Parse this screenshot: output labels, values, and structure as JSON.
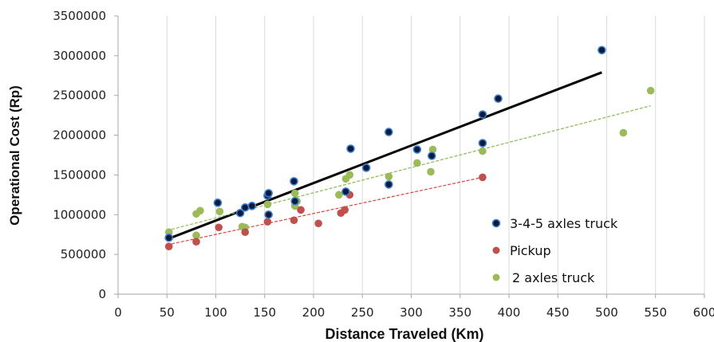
{
  "chart_data": {
    "type": "scatter",
    "title": "",
    "xlabel": "Distance Traveled (Km)",
    "ylabel": "Operational Cost  (Rp)",
    "xlim": [
      0,
      600
    ],
    "ylim": [
      0,
      3500000
    ],
    "xticks": [
      0,
      50,
      100,
      150,
      200,
      250,
      300,
      350,
      400,
      450,
      500,
      550,
      600
    ],
    "yticks": [
      0,
      500000,
      1000000,
      1500000,
      2000000,
      2500000,
      3000000,
      3500000
    ],
    "xtick_labels": [
      "0",
      "50",
      "100",
      "150",
      "200",
      "250",
      "300",
      "350",
      "400",
      "450",
      "500",
      "550",
      "600"
    ],
    "ytick_labels": [
      "0",
      "500000",
      "1000000",
      "1500000",
      "2000000",
      "2500000",
      "3000000",
      "3500000"
    ],
    "grid": "vertical",
    "legend_position": "bottom-right",
    "series": [
      {
        "name": "3-4-5 axles truck",
        "color": "#0d1a3a",
        "edge_color": "#3d7fd0",
        "trend_color": "#000000",
        "trend_style": "solid",
        "trendline": [
          [
            50,
            690000
          ],
          [
            495,
            2790000
          ]
        ],
        "points": [
          [
            52,
            710000
          ],
          [
            102,
            1150000
          ],
          [
            125,
            1020000
          ],
          [
            130,
            1090000
          ],
          [
            137,
            1110000
          ],
          [
            153,
            1240000
          ],
          [
            154,
            1270000
          ],
          [
            154,
            1000000
          ],
          [
            180,
            1420000
          ],
          [
            181,
            1170000
          ],
          [
            233,
            1290000
          ],
          [
            238,
            1830000
          ],
          [
            254,
            1590000
          ],
          [
            277,
            2040000
          ],
          [
            277,
            1380000
          ],
          [
            306,
            1820000
          ],
          [
            321,
            1740000
          ],
          [
            373,
            2260000
          ],
          [
            373,
            1900000
          ],
          [
            389,
            2460000
          ],
          [
            495,
            3070000
          ]
        ]
      },
      {
        "name": "Pickup",
        "color": "#c0504d",
        "trend_color": "#d9453d",
        "trend_style": "dashed",
        "trendline": [
          [
            50,
            620000
          ],
          [
            373,
            1470000
          ]
        ],
        "points": [
          [
            52,
            600000
          ],
          [
            80,
            660000
          ],
          [
            103,
            840000
          ],
          [
            130,
            780000
          ],
          [
            153,
            910000
          ],
          [
            180,
            930000
          ],
          [
            187,
            1060000
          ],
          [
            205,
            890000
          ],
          [
            228,
            1020000
          ],
          [
            232,
            1060000
          ],
          [
            237,
            1250000
          ],
          [
            373,
            1470000
          ]
        ]
      },
      {
        "name": "2 axles truck",
        "color": "#9bbb59",
        "trend_color": "#8fbc5a",
        "trend_style": "dashed",
        "trendline": [
          [
            50,
            800000
          ],
          [
            545,
            2370000
          ]
        ],
        "points": [
          [
            52,
            780000
          ],
          [
            80,
            740000
          ],
          [
            80,
            1010000
          ],
          [
            84,
            1050000
          ],
          [
            104,
            1040000
          ],
          [
            127,
            850000
          ],
          [
            130,
            840000
          ],
          [
            153,
            1130000
          ],
          [
            181,
            1270000
          ],
          [
            181,
            1110000
          ],
          [
            183,
            1170000
          ],
          [
            226,
            1250000
          ],
          [
            233,
            1450000
          ],
          [
            237,
            1500000
          ],
          [
            277,
            1480000
          ],
          [
            306,
            1650000
          ],
          [
            320,
            1540000
          ],
          [
            322,
            1820000
          ],
          [
            373,
            1800000
          ],
          [
            517,
            2030000
          ],
          [
            545,
            2560000
          ]
        ]
      }
    ]
  }
}
